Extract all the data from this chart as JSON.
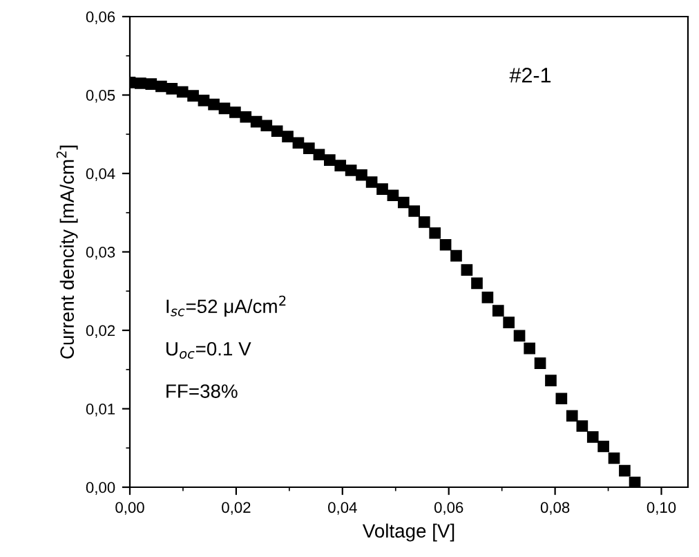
{
  "chart_data": {
    "type": "scatter",
    "xlabel": "Voltage [V]",
    "ylabel": "Current dencity [mA/cm$^{2}$]",
    "x": [
      0.0,
      0.002,
      0.004,
      0.0059,
      0.0079,
      0.0099,
      0.0119,
      0.0139,
      0.0158,
      0.0178,
      0.0198,
      0.0218,
      0.0238,
      0.0257,
      0.0277,
      0.0297,
      0.0317,
      0.0337,
      0.0356,
      0.0376,
      0.0396,
      0.0416,
      0.0436,
      0.0455,
      0.0475,
      0.0495,
      0.0515,
      0.0535,
      0.0554,
      0.0574,
      0.0594,
      0.0614,
      0.0634,
      0.0653,
      0.0673,
      0.0693,
      0.0713,
      0.0733,
      0.0752,
      0.0772,
      0.0792,
      0.0812,
      0.0832,
      0.0851,
      0.0871,
      0.0891,
      0.0911,
      0.0931,
      0.095
    ],
    "series": [
      {
        "color": "#000000",
        "values": [
          0.0516,
          0.0515,
          0.0514,
          0.0511,
          0.0508,
          0.0504,
          0.0499,
          0.0493,
          0.0488,
          0.0483,
          0.0478,
          0.0472,
          0.0466,
          0.0461,
          0.0454,
          0.0447,
          0.0439,
          0.0432,
          0.0424,
          0.0417,
          0.041,
          0.0404,
          0.0398,
          0.0389,
          0.038,
          0.0372,
          0.0363,
          0.0352,
          0.0338,
          0.0324,
          0.0309,
          0.0295,
          0.0277,
          0.026,
          0.0242,
          0.0225,
          0.021,
          0.0193,
          0.0177,
          0.0158,
          0.0136,
          0.0113,
          0.0091,
          0.0078,
          0.0064,
          0.0052,
          0.0037,
          0.0021,
          0.0006
        ]
      }
    ],
    "marker": "square",
    "xlim": [
      0.0,
      0.105
    ],
    "ylim": [
      0.0,
      0.06
    ],
    "xticks": [
      {
        "value": 0.0,
        "label": "0,00"
      },
      {
        "value": 0.02,
        "label": "0,02"
      },
      {
        "value": 0.04,
        "label": "0,04"
      },
      {
        "value": 0.06,
        "label": "0,06"
      },
      {
        "value": 0.08,
        "label": "0,08"
      },
      {
        "value": 0.1,
        "label": "0,10"
      }
    ],
    "yticks": [
      {
        "value": 0.0,
        "label": "0,00"
      },
      {
        "value": 0.01,
        "label": "0,01"
      },
      {
        "value": 0.02,
        "label": "0,02"
      },
      {
        "value": 0.03,
        "label": "0,03"
      },
      {
        "value": 0.04,
        "label": "0,04"
      },
      {
        "value": 0.05,
        "label": "0,05"
      },
      {
        "value": 0.06,
        "label": "0,06"
      }
    ],
    "annotations": [
      "#2-1",
      "I$_{sc}$=52 μA/cm$^{2}$",
      "U$_{oc}$=0.1 V",
      "FF=38%"
    ]
  }
}
